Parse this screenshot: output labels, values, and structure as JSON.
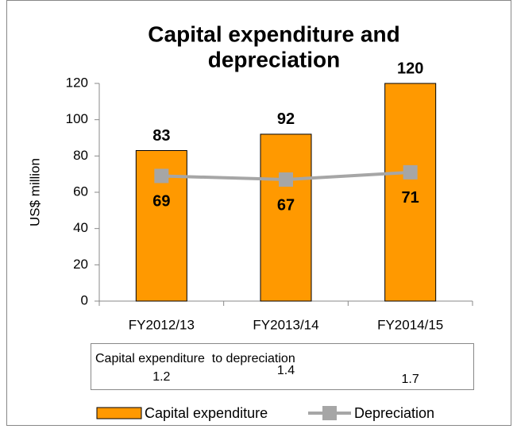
{
  "chart_data": {
    "type": "bar",
    "title": [
      "Capital expenditure and",
      "depreciation"
    ],
    "y_label": "US$ million",
    "categories": [
      "FY2012/13",
      "FY2013/14",
      "FY2014/15"
    ],
    "series": [
      {
        "name": "Capital expenditure",
        "type": "bar",
        "color": "#ff9900",
        "values": [
          83,
          92,
          120
        ]
      },
      {
        "name": "Depreciation",
        "type": "line",
        "color": "#a6a6a6",
        "values": [
          69,
          67,
          71
        ]
      }
    ],
    "ylim": [
      0,
      120
    ],
    "yticks": [
      0,
      20,
      40,
      60,
      80,
      100,
      120
    ],
    "ratio": {
      "label": "Capital expenditure  to depreciation",
      "values": [
        1.2,
        1.4,
        1.7
      ]
    }
  }
}
